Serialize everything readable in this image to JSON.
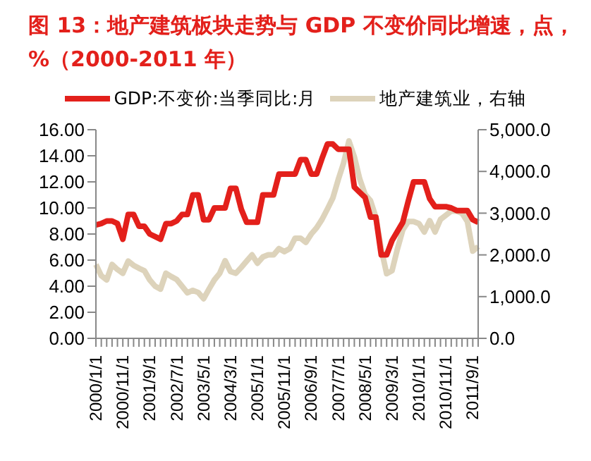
{
  "chart_data": {
    "type": "line",
    "title": "图 13：地产建筑板块走势与 GDP 不变价同比增速，点，%（2000-2011 年）",
    "categories": [
      "2000/1/1",
      null,
      null,
      null,
      null,
      "2000/11/1",
      null,
      null,
      null,
      null,
      "2001/9/1",
      null,
      null,
      null,
      null,
      "2002/7/1",
      null,
      null,
      null,
      null,
      "2003/5/1",
      null,
      null,
      null,
      null,
      "2004/3/1",
      null,
      null,
      null,
      null,
      "2005/1/1",
      null,
      null,
      null,
      null,
      "2005/11/1",
      null,
      null,
      null,
      null,
      "2006/9/1",
      null,
      null,
      null,
      null,
      "2007/7/1",
      null,
      null,
      null,
      null,
      "2008/5/1",
      null,
      null,
      null,
      null,
      "2009/3/1",
      null,
      null,
      null,
      null,
      "2010/1/1",
      null,
      null,
      null,
      null,
      "2010/11/1",
      null,
      null,
      null,
      null,
      "2011/9/1",
      null
    ],
    "series": [
      {
        "name": "GDP:不变价:当季同比:月",
        "color": "#e3201b",
        "values": [
          8.7,
          8.8,
          9.0,
          9.0,
          8.8,
          7.6,
          9.5,
          9.5,
          8.6,
          8.6,
          8.0,
          7.8,
          7.6,
          8.8,
          8.8,
          9.0,
          9.5,
          9.5,
          11.0,
          11.0,
          9.1,
          9.1,
          10.0,
          10.0,
          10.0,
          11.5,
          11.5,
          9.9,
          8.9,
          8.9,
          8.9,
          11.0,
          11.0,
          11.0,
          12.6,
          12.6,
          12.6,
          12.6,
          13.7,
          13.7,
          12.6,
          12.6,
          13.8,
          14.9,
          14.9,
          14.5,
          14.5,
          14.5,
          11.6,
          11.2,
          10.8,
          9.3,
          9.3,
          6.4,
          6.4,
          7.5,
          8.2,
          8.9,
          10.5,
          12.0,
          12.0,
          12.0,
          10.7,
          10.1,
          10.1,
          10.1,
          10.0,
          9.8,
          9.8,
          9.8,
          9.1,
          8.9
        ]
      },
      {
        "name": "地产建筑业，右轴",
        "color": "#ddd3bb",
        "axis": "y2",
        "values": [
          1770,
          1500,
          1400,
          1770,
          1650,
          1560,
          1850,
          1750,
          1680,
          1620,
          1400,
          1250,
          1180,
          1560,
          1480,
          1410,
          1250,
          1090,
          1150,
          1100,
          950,
          1180,
          1400,
          1560,
          1860,
          1600,
          1560,
          1700,
          1850,
          2000,
          1800,
          1950,
          2000,
          2000,
          2150,
          2080,
          2150,
          2400,
          2400,
          2300,
          2500,
          2650,
          2850,
          3100,
          3360,
          3800,
          4200,
          4730,
          4350,
          3820,
          3450,
          3300,
          2900,
          2140,
          1550,
          1620,
          2140,
          2600,
          2800,
          2800,
          2750,
          2550,
          2820,
          2550,
          2850,
          2950,
          3050,
          3050,
          3000,
          2800,
          2090,
          2200
        ]
      }
    ],
    "ylim": [
      0,
      16
    ],
    "yticks": [
      {
        "value": 0,
        "label": "0.00"
      },
      {
        "value": 2,
        "label": "2.00"
      },
      {
        "value": 4,
        "label": "4.00"
      },
      {
        "value": 6,
        "label": "6.00"
      },
      {
        "value": 8,
        "label": "8.00"
      },
      {
        "value": 10,
        "label": "10.00"
      },
      {
        "value": 12,
        "label": "12.00"
      },
      {
        "value": 14,
        "label": "14.00"
      },
      {
        "value": 16,
        "label": "16.00"
      }
    ],
    "y2lim": [
      0,
      5000
    ],
    "y2ticks": [
      {
        "value": 0,
        "label": "0.0"
      },
      {
        "value": 1000,
        "label": "1,000.0"
      },
      {
        "value": 2000,
        "label": "2,000.0"
      },
      {
        "value": 3000,
        "label": "3,000.0"
      },
      {
        "value": 4000,
        "label": "4,000.0"
      },
      {
        "value": 5000,
        "label": "5,000.0"
      }
    ],
    "legend": "top",
    "grid": false,
    "marker": "none",
    "line_style": "solid"
  }
}
